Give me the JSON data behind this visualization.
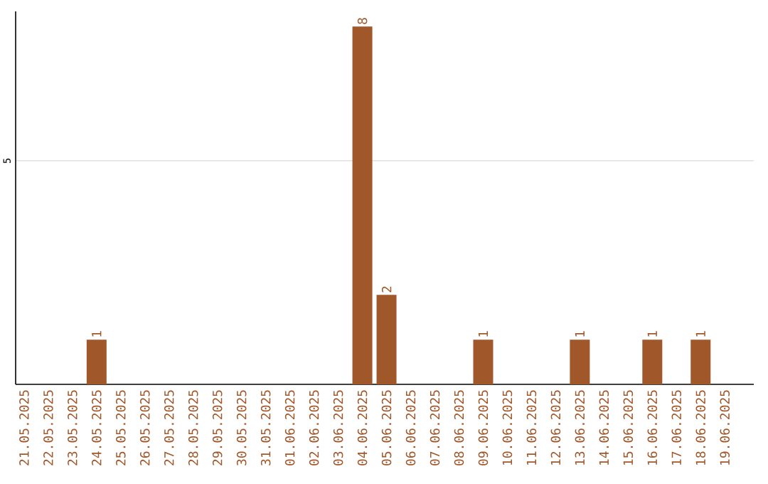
{
  "chart_data": {
    "type": "bar",
    "categories": [
      "21.05.2025",
      "22.05.2025",
      "23.05.2025",
      "24.05.2025",
      "25.05.2025",
      "26.05.2025",
      "27.05.2025",
      "28.05.2025",
      "29.05.2025",
      "30.05.2025",
      "31.05.2025",
      "01.06.2025",
      "02.06.2025",
      "03.06.2025",
      "04.06.2025",
      "05.06.2025",
      "06.06.2025",
      "07.06.2025",
      "08.06.2025",
      "09.06.2025",
      "10.06.2025",
      "11.06.2025",
      "12.06.2025",
      "13.06.2025",
      "14.06.2025",
      "15.06.2025",
      "16.06.2025",
      "17.06.2025",
      "18.06.2025",
      "19.06.2025"
    ],
    "values": [
      0,
      0,
      0,
      1,
      0,
      0,
      0,
      0,
      0,
      0,
      0,
      0,
      0,
      0,
      8,
      2,
      0,
      0,
      0,
      1,
      0,
      0,
      0,
      1,
      0,
      0,
      1,
      0,
      1,
      0
    ],
    "value_labels": [
      null,
      null,
      null,
      "1",
      null,
      null,
      null,
      null,
      null,
      null,
      null,
      null,
      null,
      null,
      "8",
      "2",
      null,
      null,
      null,
      "1",
      null,
      null,
      null,
      "1",
      null,
      null,
      "1",
      null,
      "1",
      null
    ],
    "color": "#a0572a",
    "ylim": [
      0,
      8.34
    ],
    "yticks": [
      5
    ],
    "grid": "y"
  }
}
